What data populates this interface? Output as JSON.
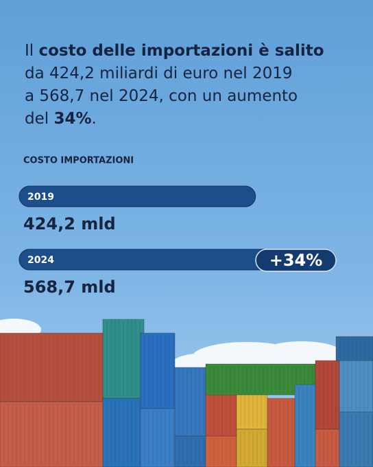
{
  "chart_data": {
    "type": "bar",
    "orientation": "horizontal",
    "title_lines": [
      [
        {
          "text": "Il ",
          "bold": false
        },
        {
          "text": "costo delle importazioni è salito",
          "bold": true
        }
      ],
      [
        {
          "text": "da 424,2 miliardi di euro nel 2019",
          "bold": false
        }
      ],
      [
        {
          "text": "a 568,7 nel 2024, con un aumento",
          "bold": false
        }
      ],
      [
        {
          "text": "del ",
          "bold": false
        },
        {
          "text": "34%",
          "bold": true
        },
        {
          "text": ".",
          "bold": false
        }
      ]
    ],
    "subtitle": "COSTO IMPORTAZIONI",
    "categories": [
      "2019",
      "2024"
    ],
    "values": [
      424.2,
      568.7
    ],
    "value_labels": [
      "424,2 mld",
      "568,7 mld"
    ],
    "color": "#1d4e8c",
    "annotation": "+34%"
  }
}
